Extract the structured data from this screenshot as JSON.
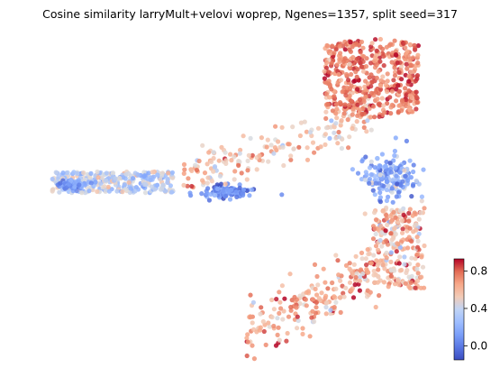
{
  "chart_data": {
    "type": "scatter",
    "title": "Cosine similarity larryMult+velovi woprep, Ngenes=1357, split seed=317",
    "xlabel": "",
    "ylabel": "",
    "axes_visible": false,
    "grid": false,
    "point_count_approx": 1800,
    "colorbar": {
      "cmap": "coolwarm",
      "vmin": -0.15,
      "vmax": 0.93,
      "ticks": [
        0.0,
        0.4,
        0.8
      ],
      "tick_labels": [
        "0.0",
        "0.4",
        "0.8"
      ],
      "placement": "bottom-right"
    },
    "regions": [
      {
        "name": "left-stem",
        "center": [
          2.0,
          0.58
        ],
        "spread": [
          1.1,
          0.22
        ],
        "mean": 0.33,
        "sd": 0.12
      },
      {
        "name": "left-blue-patch",
        "center": [
          1.0,
          0.5
        ],
        "spread": [
          0.3,
          0.12
        ],
        "mean": 0.1,
        "sd": 0.08
      },
      {
        "name": "mid-blue-neck",
        "center": [
          4.9,
          0.32
        ],
        "spread": [
          0.6,
          0.15
        ],
        "mean": 0.06,
        "sd": 0.1
      },
      {
        "name": "upper-ridge",
        "center": [
          6.3,
          1.55
        ],
        "spread": [
          1.2,
          0.25
        ],
        "mean": 0.55,
        "sd": 0.14
      },
      {
        "name": "top-right-lobe",
        "center": [
          8.6,
          3.4
        ],
        "spread": [
          1.0,
          0.95
        ],
        "mean": 0.76,
        "sd": 0.1
      },
      {
        "name": "right-junction-blue",
        "center": [
          9.1,
          0.7
        ],
        "spread": [
          0.6,
          0.55
        ],
        "mean": 0.16,
        "sd": 0.14
      },
      {
        "name": "right-lower-arm",
        "center": [
          9.3,
          -1.2
        ],
        "spread": [
          0.6,
          0.7
        ],
        "mean": 0.6,
        "sd": 0.16
      },
      {
        "name": "bottom-branch",
        "center": [
          7.1,
          -2.8
        ],
        "spread": [
          1.1,
          0.5
        ],
        "mean": 0.66,
        "sd": 0.14
      }
    ],
    "x_range": [
      0.0,
      10.5
    ],
    "y_range": [
      -3.9,
      4.5
    ]
  }
}
